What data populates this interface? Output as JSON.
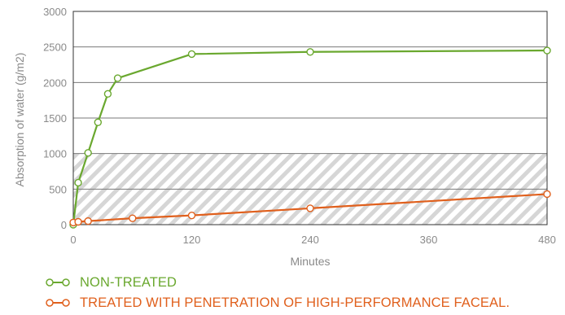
{
  "chart_data": {
    "type": "line",
    "title": "",
    "xlabel": "Minutes",
    "ylabel": "Absorption of water (g/m2)",
    "xlim": [
      0,
      480
    ],
    "ylim": [
      0,
      3000
    ],
    "x_ticks": [
      0,
      120,
      240,
      360,
      480
    ],
    "y_ticks": [
      0,
      500,
      1000,
      1500,
      2000,
      2500,
      3000
    ],
    "grid": "horizontal",
    "shaded_band": [
      0,
      1000
    ],
    "legend_position": "bottom-left",
    "series": [
      {
        "name": "NON-TREATED",
        "color": "#6aa82f",
        "x": [
          0,
          5,
          15,
          25,
          35,
          45,
          120,
          240,
          480
        ],
        "y": [
          0,
          590,
          1010,
          1440,
          1840,
          2060,
          2400,
          2430,
          2450
        ]
      },
      {
        "name": "TREATED WITH PENETRATION OF HIGH-PERFORMANCE FACEAL.",
        "color": "#e0601d",
        "x": [
          0,
          5,
          15,
          60,
          120,
          240,
          480
        ],
        "y": [
          30,
          40,
          50,
          90,
          130,
          230,
          430
        ]
      }
    ]
  },
  "legend_markers": [
    {
      "color": "#6aa82f",
      "icon": "line-circle-icon"
    },
    {
      "color": "#e0601d",
      "icon": "line-circle-icon"
    }
  ]
}
